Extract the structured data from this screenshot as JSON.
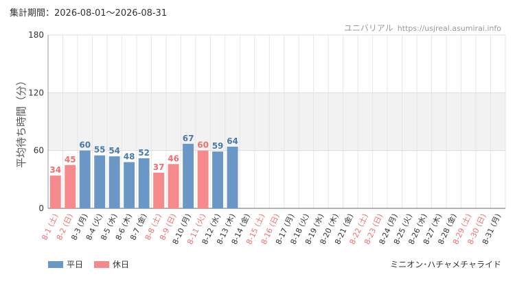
{
  "header": {
    "period": "集計期間：2026-08-01〜2026-08-31",
    "site_name": "ユニバリアル",
    "site_url": "https://usjreal.asumirai.info"
  },
  "ride_name": "ミニオン･ハチャメチャライド",
  "colors": {
    "weekday": "#6a97c6",
    "holiday": "#f6898c",
    "weekday_label": "#4a79ad",
    "holiday_label": "#ee6f72",
    "date_weekday": "#333333",
    "date_holiday": "#ee6f72"
  },
  "chart_data": {
    "type": "bar",
    "title": "",
    "xlabel": "",
    "ylabel": "平均待ち時間（分）",
    "ylim": [
      0,
      180
    ],
    "yticks": [
      "0",
      "60",
      "120",
      "180"
    ],
    "shaded_band": [
      60,
      120
    ],
    "grid": true,
    "legend_position": "bottom-left",
    "legend": [
      {
        "key": "weekday",
        "label": "平日"
      },
      {
        "key": "holiday",
        "label": "休日"
      }
    ],
    "categories": [
      "8-1 (土)",
      "8-2 (日)",
      "8-3 (月)",
      "8-4 (火)",
      "8-5 (水)",
      "8-6 (木)",
      "8-7 (金)",
      "8-8 (土)",
      "8-9 (日)",
      "8-10 (月)",
      "8-11 (火)",
      "8-12 (水)",
      "8-13 (木)",
      "8-14 (金)",
      "8-15 (土)",
      "8-16 (日)",
      "8-17 (月)",
      "8-18 (火)",
      "8-19 (水)",
      "8-20 (木)",
      "8-21 (金)",
      "8-22 (土)",
      "8-23 (日)",
      "8-24 (月)",
      "8-25 (火)",
      "8-26 (水)",
      "8-27 (木)",
      "8-28 (金)",
      "8-29 (土)",
      "8-30 (日)",
      "8-31 (月)"
    ],
    "day_type": [
      "holiday",
      "holiday",
      "weekday",
      "weekday",
      "weekday",
      "weekday",
      "weekday",
      "holiday",
      "holiday",
      "weekday",
      "holiday",
      "weekday",
      "weekday",
      "weekday",
      "holiday",
      "holiday",
      "weekday",
      "weekday",
      "weekday",
      "weekday",
      "weekday",
      "holiday",
      "holiday",
      "weekday",
      "weekday",
      "weekday",
      "weekday",
      "weekday",
      "holiday",
      "holiday",
      "weekday"
    ],
    "values": [
      34,
      45,
      60,
      55,
      54,
      48,
      52,
      37,
      46,
      67,
      60,
      59,
      64,
      null,
      null,
      null,
      null,
      null,
      null,
      null,
      null,
      null,
      null,
      null,
      null,
      null,
      null,
      null,
      null,
      null,
      null
    ]
  }
}
